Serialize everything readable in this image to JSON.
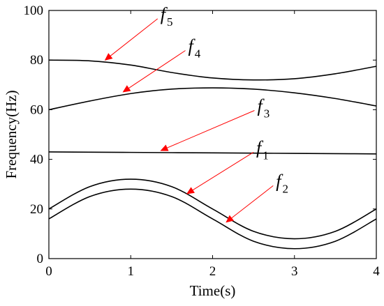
{
  "chart_data": {
    "type": "line",
    "title": "",
    "xlabel": "Time(s)",
    "ylabel": "Frequency(Hz)",
    "xlim": [
      0,
      4
    ],
    "ylim": [
      0,
      100
    ],
    "xticks": [
      "0",
      "1",
      "2",
      "3",
      "4"
    ],
    "yticks": [
      "0",
      "20",
      "40",
      "60",
      "80",
      "100"
    ],
    "grid": false,
    "line_color": "#000000",
    "annotation_color": "#ff0000",
    "x": [
      0,
      0.5,
      1,
      1.5,
      2,
      2.5,
      3,
      3.5,
      4
    ],
    "series": [
      {
        "values": [
          20,
          29,
          32,
          29,
          20,
          11,
          8,
          11,
          20
        ]
      },
      {
        "values": [
          16,
          25,
          28,
          25,
          16,
          7,
          4,
          7,
          16
        ]
      },
      {
        "values": [
          43,
          42.9,
          42.8,
          42.7,
          42.6,
          42.5,
          42.4,
          42.3,
          42.2
        ]
      },
      {
        "values": [
          60,
          63.5,
          66.5,
          68.3,
          68.8,
          68.3,
          66.8,
          64.5,
          61.5
        ]
      },
      {
        "values": [
          80,
          79.7,
          78,
          75,
          72.8,
          72,
          72.5,
          74.5,
          77.5
        ]
      }
    ],
    "annotations": [
      {
        "base": "f",
        "sub": "5",
        "point": [
          0.68,
          79.8
        ]
      },
      {
        "base": "f",
        "sub": "4",
        "point": [
          0.9,
          67.0
        ]
      },
      {
        "base": "f",
        "sub": "3",
        "point": [
          1.36,
          43.4
        ]
      },
      {
        "base": "f",
        "sub": "1",
        "point": [
          1.68,
          26.0
        ]
      },
      {
        "base": "f",
        "sub": "2",
        "point": [
          2.16,
          14.5
        ]
      }
    ]
  }
}
